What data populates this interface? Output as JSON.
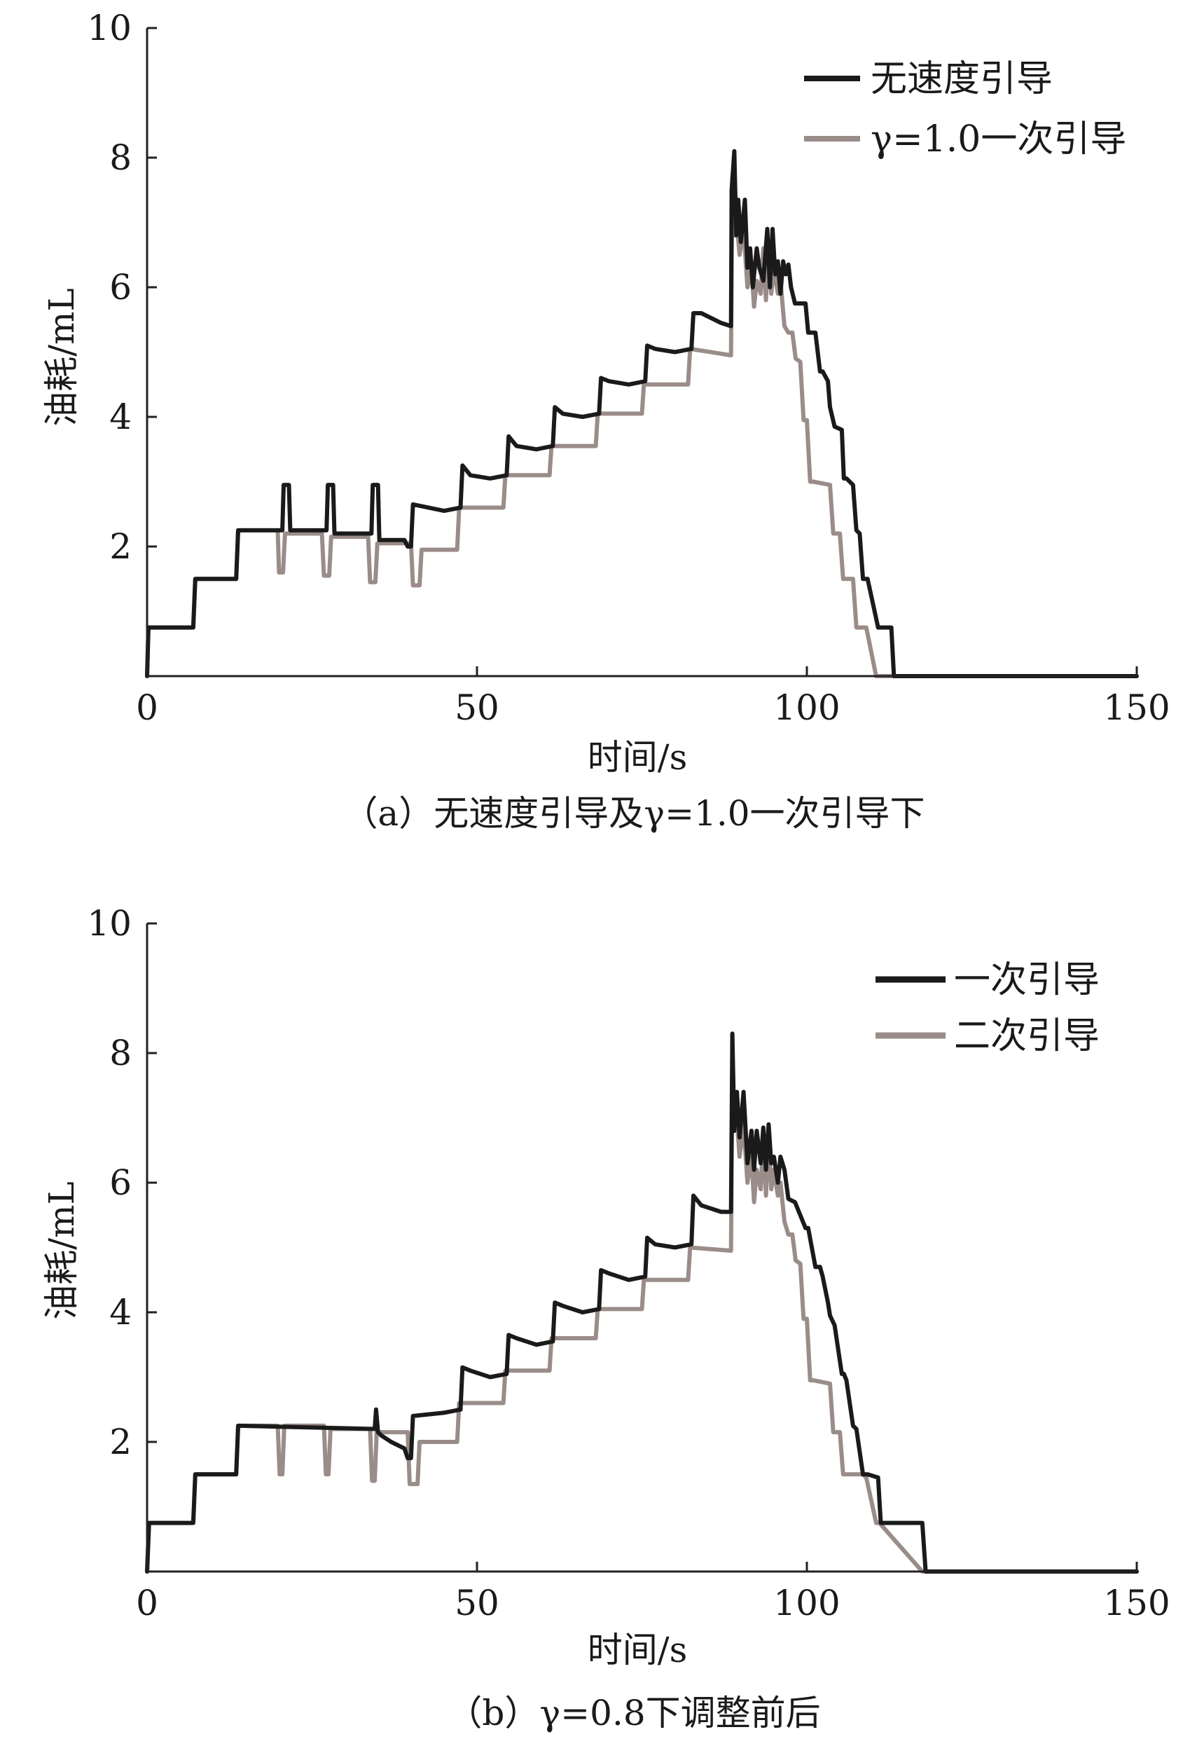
{
  "colors": {
    "black": "#1a1a1a",
    "gray": "#9a8c88",
    "axis": "#222222"
  },
  "chart_data": [
    {
      "type": "line",
      "caption": "（a）无速度引导及γ=1.0一次引导下",
      "xlabel": "时间/s",
      "ylabel": "油耗/mL",
      "xlim": [
        0,
        150
      ],
      "ylim": [
        0,
        10
      ],
      "x_ticks": [
        0,
        50,
        100,
        150
      ],
      "y_ticks": [
        2,
        4,
        6,
        8,
        10
      ],
      "x_tick_labels": [
        "0",
        "50",
        "100",
        "150"
      ],
      "y_tick_labels": [
        "2",
        "4",
        "6",
        "8",
        "10"
      ],
      "legend_position": "top-right",
      "series": [
        {
          "name": "无速度引导",
          "color": "#1a1a1a",
          "x": [
            0,
            0.2,
            7,
            7.3,
            13.5,
            13.8,
            20.5,
            20.7,
            21.5,
            21.7,
            27.2,
            27.4,
            28.2,
            28.4,
            34,
            34.2,
            35,
            35.2,
            36,
            39,
            39.5,
            40,
            40.3,
            45,
            47.5,
            47.8,
            49,
            52,
            54.5,
            54.8,
            56,
            59,
            61.5,
            61.8,
            63,
            66,
            68.5,
            68.8,
            70,
            73,
            75.5,
            75.8,
            77,
            80,
            82.5,
            82.8,
            84,
            87,
            88.5,
            88.6,
            89,
            89.3,
            89.6,
            90,
            90.6,
            91,
            91.4,
            91.8,
            92.4,
            92.8,
            93.4,
            94,
            94.4,
            94.8,
            95.2,
            95.6,
            96,
            96.4,
            96.8,
            97.2,
            97.6,
            98.2,
            99.8,
            100.2,
            101.3,
            102,
            102.4,
            103.2,
            103.5,
            104.2,
            105.3,
            105.6,
            106,
            107,
            107.5,
            108,
            108.5,
            109.2,
            110.8,
            111.2,
            112.8,
            113.2,
            116,
            117,
            117.5,
            118,
            150
          ],
          "y": [
            0,
            0.75,
            0.75,
            1.5,
            1.5,
            2.25,
            2.25,
            2.95,
            2.95,
            2.25,
            2.25,
            2.95,
            2.95,
            2.2,
            2.2,
            2.95,
            2.95,
            2.1,
            2.1,
            2.1,
            2.0,
            2.0,
            2.65,
            2.55,
            2.6,
            3.25,
            3.1,
            3.05,
            3.1,
            3.7,
            3.55,
            3.5,
            3.55,
            4.15,
            4.05,
            4.0,
            4.05,
            4.6,
            4.55,
            4.5,
            4.55,
            5.1,
            5.05,
            5.0,
            5.05,
            5.6,
            5.6,
            5.45,
            5.4,
            7.5,
            8.1,
            6.8,
            7.35,
            6.7,
            7.35,
            6.3,
            6.6,
            6.0,
            6.6,
            6.3,
            6.1,
            6.9,
            6.0,
            6.9,
            6.2,
            6.4,
            5.9,
            6.4,
            6.2,
            6.35,
            6.0,
            5.75,
            5.75,
            5.3,
            5.3,
            4.7,
            4.7,
            4.55,
            4.15,
            3.85,
            3.8,
            3.05,
            3.05,
            2.95,
            2.25,
            2.2,
            1.5,
            1.5,
            0.75,
            0.75,
            0.75,
            0.0,
            0.0,
            0.0,
            0.0,
            0.0,
            0.0
          ]
        },
        {
          "name": "γ=1.0一次引导",
          "color": "#9a8c88",
          "x": [
            0,
            0.2,
            7,
            7.3,
            13.5,
            13.8,
            19.8,
            20,
            20.6,
            20.9,
            26.5,
            26.8,
            27.6,
            27.9,
            33.5,
            33.8,
            34.6,
            34.9,
            40,
            40.3,
            41.3,
            41.6,
            47,
            47.3,
            54,
            54.3,
            61,
            61.3,
            68,
            68.3,
            75,
            75.3,
            82,
            82.3,
            88.5,
            88.7,
            89,
            89.4,
            89.8,
            90.4,
            91,
            91.6,
            92,
            92.4,
            93,
            93.4,
            93.8,
            94.2,
            94.6,
            95,
            95.6,
            96,
            96.6,
            97.2,
            97.8,
            98.3,
            99,
            99.5,
            100,
            100.5,
            101,
            103.5,
            104,
            105,
            105.5,
            107,
            107.5,
            108.5,
            109,
            110.5,
            111,
            116,
            116.3,
            117.5,
            118,
            150
          ],
          "y": [
            0,
            0.75,
            0.75,
            1.5,
            1.5,
            2.25,
            2.25,
            1.6,
            1.6,
            2.2,
            2.2,
            1.55,
            1.55,
            2.15,
            2.15,
            1.45,
            1.45,
            2.05,
            2.05,
            1.4,
            1.4,
            1.95,
            1.95,
            2.6,
            2.6,
            3.1,
            3.1,
            3.55,
            3.55,
            4.05,
            4.05,
            4.5,
            4.5,
            5.05,
            4.95,
            7.7,
            6.8,
            7.0,
            6.5,
            6.9,
            6.0,
            6.3,
            5.7,
            6.1,
            5.9,
            6.6,
            5.8,
            6.7,
            5.9,
            6.3,
            5.9,
            6.1,
            5.4,
            5.3,
            5.3,
            4.9,
            4.85,
            3.95,
            3.95,
            3.0,
            3.0,
            2.95,
            2.2,
            2.2,
            1.5,
            1.5,
            0.75,
            0.75,
            0.75,
            0.0,
            0.0,
            0.0,
            0.0,
            0.0,
            0.0,
            0.0
          ]
        }
      ]
    },
    {
      "type": "line",
      "caption": "（b）γ=0.8下调整前后",
      "xlabel": "时间/s",
      "ylabel": "油耗/mL",
      "xlim": [
        0,
        150
      ],
      "ylim": [
        0,
        10
      ],
      "x_ticks": [
        0,
        50,
        100,
        150
      ],
      "y_ticks": [
        2,
        4,
        6,
        8,
        10
      ],
      "x_tick_labels": [
        "0",
        "50",
        "100",
        "150"
      ],
      "y_tick_labels": [
        "2",
        "4",
        "6",
        "8",
        "10"
      ],
      "legend_position": "top-right",
      "series": [
        {
          "name": "一次引导",
          "color": "#1a1a1a",
          "x": [
            0,
            0.3,
            7,
            7.3,
            13.5,
            13.8,
            34.5,
            34.7,
            35,
            35.5,
            37,
            39,
            39.5,
            40,
            40.3,
            45,
            47.5,
            47.8,
            49,
            52,
            54.5,
            54.8,
            56,
            59,
            61.5,
            61.8,
            63,
            66,
            68.5,
            68.8,
            70,
            73,
            75.5,
            75.8,
            77,
            80,
            82.5,
            82.8,
            84,
            87,
            88.5,
            88.7,
            89,
            89.4,
            89.8,
            90.4,
            91,
            91.6,
            92,
            92.4,
            93,
            93.4,
            93.8,
            94.2,
            94.6,
            95,
            95.6,
            96,
            96.6,
            97.2,
            98.2,
            99.8,
            100.2,
            101.3,
            102,
            102.4,
            103.2,
            103.5,
            104.2,
            105.3,
            105.6,
            106,
            107,
            107.5,
            108.5,
            109.2,
            110.8,
            111.2,
            117.5,
            118,
            150
          ],
          "y": [
            0,
            0.75,
            0.75,
            1.5,
            1.5,
            2.25,
            2.2,
            2.5,
            2.15,
            2.1,
            2.0,
            1.9,
            1.75,
            1.75,
            2.4,
            2.45,
            2.5,
            3.15,
            3.1,
            3.0,
            3.05,
            3.65,
            3.6,
            3.5,
            3.55,
            4.15,
            4.1,
            4.0,
            4.05,
            4.65,
            4.6,
            4.5,
            4.55,
            5.15,
            5.05,
            5.0,
            5.05,
            5.8,
            5.65,
            5.55,
            5.55,
            8.3,
            6.8,
            7.4,
            6.7,
            7.4,
            6.3,
            6.8,
            6.2,
            6.8,
            6.3,
            6.85,
            6.2,
            6.9,
            6.3,
            6.4,
            6.0,
            6.4,
            6.2,
            5.75,
            5.7,
            5.3,
            5.3,
            4.7,
            4.7,
            4.55,
            4.15,
            3.95,
            3.8,
            3.05,
            3.05,
            2.95,
            2.25,
            2.2,
            1.5,
            1.5,
            1.45,
            0.75,
            0.75,
            0.0,
            0.0
          ]
        },
        {
          "name": "二次引导",
          "color": "#9a8c88",
          "x": [
            0,
            0.3,
            7,
            7.3,
            13.5,
            13.8,
            19.8,
            20.1,
            20.5,
            20.8,
            26.8,
            27.1,
            27.5,
            27.8,
            33.8,
            34.1,
            34.5,
            34.8,
            39.5,
            39.8,
            41,
            41.3,
            47,
            47.3,
            54,
            54.3,
            61,
            61.3,
            68,
            68.3,
            75,
            75.3,
            82,
            82.3,
            88.5,
            88.7,
            89,
            89.4,
            89.8,
            90.4,
            91,
            91.6,
            92,
            92.4,
            93,
            93.4,
            93.8,
            94.2,
            94.6,
            95,
            95.6,
            96,
            96.6,
            97.2,
            97.8,
            98.3,
            99,
            99.5,
            100,
            100.5,
            101,
            103.5,
            104,
            105,
            105.5,
            108.5,
            109,
            110.5,
            111,
            117.5,
            118,
            150
          ],
          "y": [
            0,
            0.75,
            0.75,
            1.5,
            1.5,
            2.25,
            2.25,
            1.5,
            1.5,
            2.25,
            2.25,
            1.5,
            1.5,
            2.2,
            2.2,
            1.4,
            1.4,
            2.15,
            2.15,
            1.35,
            1.35,
            2.0,
            2.0,
            2.6,
            2.6,
            3.1,
            3.1,
            3.6,
            3.6,
            4.05,
            4.05,
            4.5,
            4.5,
            5.0,
            4.95,
            7.8,
            6.8,
            7.0,
            6.4,
            6.9,
            6.0,
            6.4,
            5.7,
            6.2,
            5.9,
            6.7,
            5.8,
            6.8,
            5.9,
            6.2,
            5.8,
            6.0,
            5.4,
            5.2,
            5.2,
            4.8,
            4.75,
            3.9,
            3.9,
            2.95,
            2.95,
            2.9,
            2.15,
            2.15,
            1.5,
            1.5,
            1.45,
            0.75,
            0.75,
            0.0,
            0.0,
            0.0
          ]
        }
      ]
    }
  ]
}
